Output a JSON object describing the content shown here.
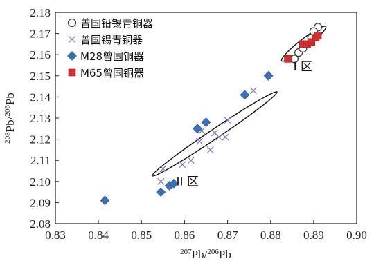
{
  "chart_data": {
    "type": "scatter",
    "xlabel": "207Pb/206Pb",
    "ylabel": "208Pb/206Pb",
    "x_axis_label": {
      "sup": "207",
      "base": "Pb/",
      "sup2": "206",
      "base2": "Pb"
    },
    "y_axis_label": {
      "sup": "208",
      "base": "Pb/",
      "sup2": "206",
      "base2": "Pb"
    },
    "xlim": [
      0.83,
      0.9
    ],
    "ylim": [
      2.08,
      2.18
    ],
    "x_ticks": [
      "0.83",
      "0.84",
      "0.85",
      "0.86",
      "0.87",
      "0.88",
      "0.89",
      "0.90"
    ],
    "y_ticks": [
      "2.08",
      "2.09",
      "2.10",
      "2.11",
      "2.12",
      "2.13",
      "2.14",
      "2.15",
      "2.16",
      "2.17",
      "2.18"
    ],
    "grid": false,
    "legend_position": "top-left",
    "series": [
      {
        "name": "曾国铅锡青铜器",
        "marker": "open-circle",
        "color": "#333333",
        "points": [
          {
            "x": 0.8855,
            "y": 2.158
          },
          {
            "x": 0.8865,
            "y": 2.161
          },
          {
            "x": 0.8875,
            "y": 2.163
          },
          {
            "x": 0.8895,
            "y": 2.168
          },
          {
            "x": 0.891,
            "y": 2.173
          },
          {
            "x": 0.89,
            "y": 2.171
          }
        ]
      },
      {
        "name": "曾国锡青铜器",
        "marker": "x",
        "color": "#7a76b4",
        "points": [
          {
            "x": 0.8545,
            "y": 2.1
          },
          {
            "x": 0.855,
            "y": 2.106
          },
          {
            "x": 0.8595,
            "y": 2.108
          },
          {
            "x": 0.8615,
            "y": 2.11
          },
          {
            "x": 0.8635,
            "y": 2.119
          },
          {
            "x": 0.864,
            "y": 2.124
          },
          {
            "x": 0.866,
            "y": 2.115
          },
          {
            "x": 0.867,
            "y": 2.123
          },
          {
            "x": 0.868,
            "y": 2.121
          },
          {
            "x": 0.8695,
            "y": 2.121
          },
          {
            "x": 0.87,
            "y": 2.129
          },
          {
            "x": 0.876,
            "y": 2.143
          }
        ]
      },
      {
        "name": "M28曾国铜器",
        "marker": "diamond",
        "color": "#3b6fb6",
        "points": [
          {
            "x": 0.8415,
            "y": 2.091
          },
          {
            "x": 0.8545,
            "y": 2.095
          },
          {
            "x": 0.8565,
            "y": 2.098
          },
          {
            "x": 0.8575,
            "y": 2.099
          },
          {
            "x": 0.863,
            "y": 2.125
          },
          {
            "x": 0.865,
            "y": 2.128
          },
          {
            "x": 0.874,
            "y": 2.141
          },
          {
            "x": 0.8795,
            "y": 2.15
          }
        ]
      },
      {
        "name": "M65曾国铜器",
        "marker": "square",
        "color": "#d32f2f",
        "points": [
          {
            "x": 0.884,
            "y": 2.158
          },
          {
            "x": 0.8875,
            "y": 2.165
          },
          {
            "x": 0.8885,
            "y": 2.165
          },
          {
            "x": 0.8895,
            "y": 2.166
          },
          {
            "x": 0.8905,
            "y": 2.168
          },
          {
            "x": 0.891,
            "y": 2.169
          }
        ]
      }
    ],
    "annotations": [
      {
        "label": "I 区",
        "x": 0.8875,
        "y": 2.1525
      },
      {
        "label": "II 区",
        "x": 0.8607,
        "y": 2.0982
      }
    ],
    "ellipses": [
      {
        "name": "zone-1",
        "cx": 0.8877,
        "cy": 2.1652,
        "rx_data": 0.0065,
        "ry_data": 0.007,
        "angle_deg": -38
      },
      {
        "name": "zone-2",
        "cx": 0.867,
        "cy": 2.1225,
        "rx_data": 0.0175,
        "ry_data": 0.0075,
        "angle_deg": -34
      }
    ]
  }
}
